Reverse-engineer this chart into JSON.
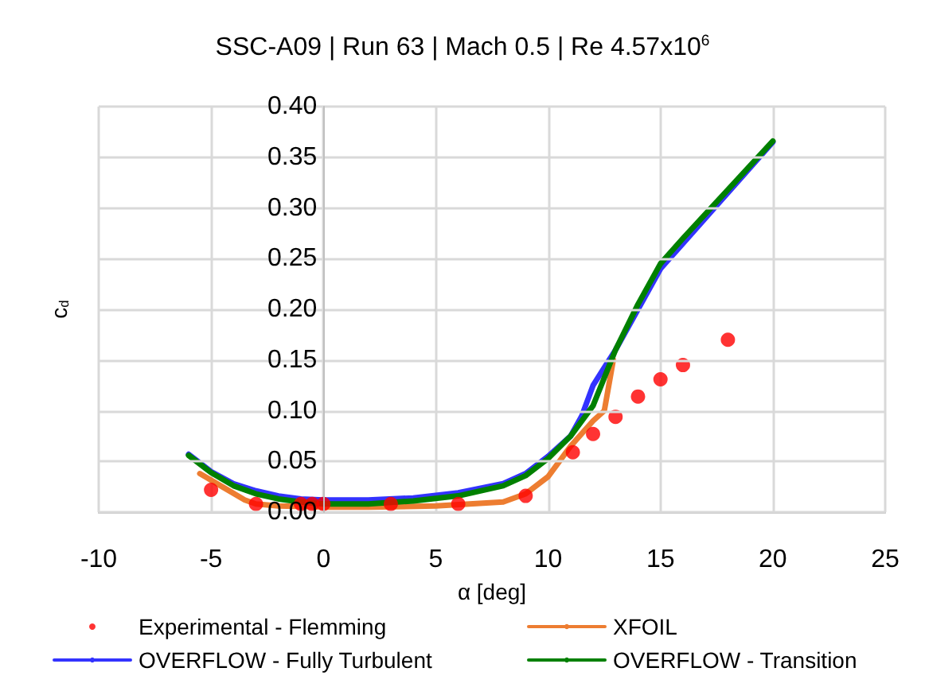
{
  "chart_data": {
    "type": "line",
    "title": "SSC-A09 | Run 63 | Mach 0.5 | Re 4.57x10$^{6}$",
    "xlabel": "α [deg]",
    "ylabel": "c$_{d}$",
    "xlim": [
      -10,
      25
    ],
    "xticks": [
      -10,
      -5,
      0,
      5,
      10,
      15,
      20,
      25
    ],
    "ylim": [
      0,
      0.4
    ],
    "yticks": [
      {
        "value": 0,
        "label": "0.00"
      },
      0.05,
      {
        "value": 0.1,
        "label": "0.10"
      },
      0.15,
      {
        "value": 0.2,
        "label": "0.20"
      },
      0.25,
      {
        "value": 0.3,
        "label": "0.30"
      },
      0.35,
      {
        "value": 0.4,
        "label": "0.40"
      }
    ],
    "grid": true,
    "legend": "bottom",
    "line_style": "solid",
    "series": [
      {
        "name": "Experimental - Flemming",
        "type": "scatter",
        "marker": "circle",
        "color": "#ff0000",
        "x": [
          -5,
          -3,
          -1,
          -0.5,
          0,
          3,
          6,
          9,
          11.1,
          12,
          13,
          14,
          15,
          16,
          18
        ],
        "values": [
          0.022,
          0.008,
          0.008,
          0.008,
          0.008,
          0.008,
          0.008,
          0.016,
          0.059,
          0.077,
          0.094,
          0.114,
          0.131,
          0.145,
          0.17
        ]
      },
      {
        "name": "XFOIL",
        "color": "#ed7d31",
        "x": [
          -5.5,
          -4.5,
          -3.5,
          -3,
          -2,
          0,
          2,
          5,
          8,
          9,
          10,
          11,
          12,
          12.5,
          12.9
        ],
        "values": [
          0.038,
          0.025,
          0.012,
          0.008,
          0.006,
          0.005,
          0.005,
          0.006,
          0.01,
          0.018,
          0.035,
          0.065,
          0.09,
          0.1,
          0.15
        ]
      },
      {
        "name": "OVERFLOW - Fully Turbulent",
        "color": "#3333ff",
        "x": [
          -6,
          -5,
          -4,
          -3,
          -2,
          -1,
          0,
          2,
          4,
          6,
          8,
          9,
          10,
          11,
          11.5,
          12,
          13,
          14,
          15,
          16,
          18,
          20
        ],
        "values": [
          0.057,
          0.04,
          0.028,
          0.021,
          0.016,
          0.013,
          0.012,
          0.012,
          0.014,
          0.019,
          0.028,
          0.038,
          0.055,
          0.075,
          0.095,
          0.125,
          0.16,
          0.2,
          0.24,
          0.265,
          0.315,
          0.365
        ]
      },
      {
        "name": "OVERFLOW - Transition",
        "color": "#008000",
        "x": [
          -6,
          -5,
          -4,
          -3,
          -2,
          -1,
          0,
          2,
          4,
          6,
          8,
          9,
          10,
          11,
          12,
          13,
          14,
          15,
          16,
          18,
          20
        ],
        "values": [
          0.056,
          0.039,
          0.026,
          0.018,
          0.013,
          0.01,
          0.008,
          0.008,
          0.011,
          0.016,
          0.026,
          0.036,
          0.053,
          0.075,
          0.105,
          0.16,
          0.205,
          0.245,
          0.27,
          0.318,
          0.366
        ]
      }
    ]
  }
}
